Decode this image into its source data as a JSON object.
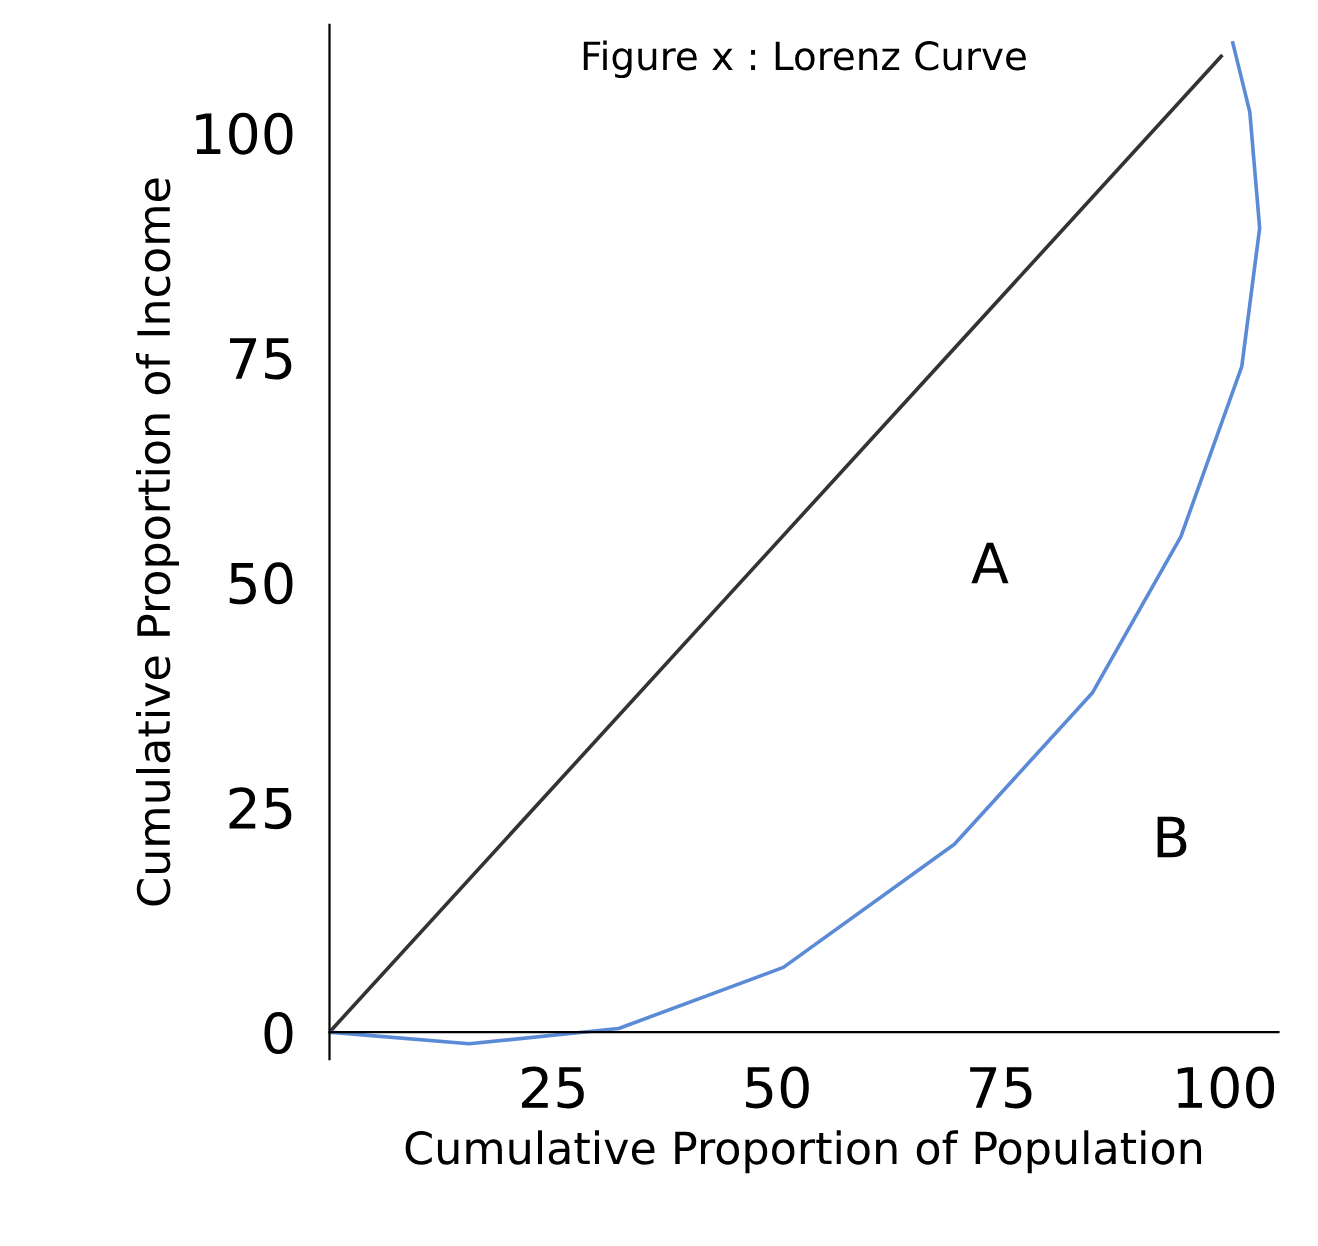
{
  "chart_data": {
    "type": "line",
    "title": "Figure x : Lorenz Curve",
    "xlabel": "Cumulative Proportion of Population",
    "ylabel": "Cumulative Proportion of Income",
    "series": [
      {
        "color": "#333333",
        "x": [
          0,
          99.6
        ],
        "values": [
          0,
          108.5
        ]
      },
      {
        "color": "#5b8bd6",
        "x": [
          0,
          15.6,
          32.3,
          50.7,
          69.8,
          85.2,
          95.1,
          101.9,
          103.9,
          102.8,
          100.9
        ],
        "values": [
          0,
          -1.3,
          0.4,
          7.2,
          20.9,
          37.7,
          55.1,
          74.0,
          89.4,
          102.3,
          110
        ]
      }
    ],
    "annotations": [
      "A",
      "B"
    ],
    "xlim": [
      0,
      106
    ],
    "ylim": [
      -3,
      112
    ],
    "xticks": [
      25,
      50,
      75,
      100
    ],
    "yticks": [
      0,
      25,
      50,
      75,
      100
    ],
    "grid": false,
    "legend": false,
    "marker": "none",
    "line_style": "solid"
  }
}
